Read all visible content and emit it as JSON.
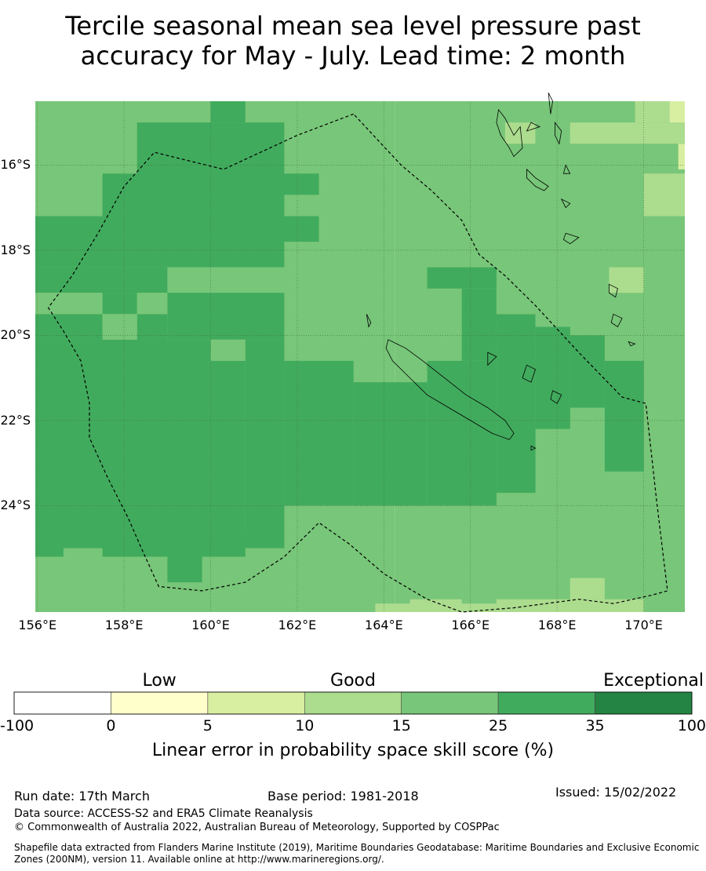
{
  "title": {
    "line1": "Tercile seasonal mean sea level pressure past",
    "line2": "accuracy for May - July. Lead time: 2 month"
  },
  "map": {
    "extent": {
      "lon": [
        155.95,
        170.95
      ],
      "lat": [
        -26.5,
        -14.5
      ]
    },
    "lat_ticks": [
      {
        "value": -16,
        "label": "16°S"
      },
      {
        "value": -18,
        "label": "18°S"
      },
      {
        "value": -20,
        "label": "20°S"
      },
      {
        "value": -22,
        "label": "22°S"
      },
      {
        "value": -24,
        "label": "24°S"
      }
    ],
    "lon_ticks": [
      {
        "value": 156,
        "label": "156°E"
      },
      {
        "value": 158,
        "label": "158°E"
      },
      {
        "value": 160,
        "label": "160°E"
      },
      {
        "value": 162,
        "label": "162°E"
      },
      {
        "value": 164,
        "label": "164°E"
      },
      {
        "value": 166,
        "label": "166°E"
      },
      {
        "value": 168,
        "label": "168°E"
      },
      {
        "value": 170,
        "label": "170°E"
      }
    ],
    "skill_colors": {
      "A": "#d8efa1",
      "B": "#acdc8e",
      "C": "#78c679",
      "D": "#41ab5d"
    },
    "skill_cells": [
      {
        "lon0": 164.25,
        "lon1": 170.95,
        "lat0": -26.5,
        "lat1": -14.5,
        "c": "C"
      },
      {
        "lon0": 155.95,
        "lon1": 164.25,
        "lat0": -26.5,
        "lat1": -14.5,
        "c": "C"
      },
      {
        "lon0": 160.0,
        "lon1": 160.8,
        "lat0": -15.0,
        "lat1": -14.5,
        "c": "D"
      },
      {
        "lon0": 158.3,
        "lon1": 161.7,
        "lat0": -17.0,
        "lat1": -15.0,
        "c": "D"
      },
      {
        "lon0": 161.7,
        "lon1": 162.5,
        "lat0": -16.7,
        "lat1": -16.2,
        "c": "D"
      },
      {
        "lon0": 157.5,
        "lon1": 161.7,
        "lat0": -17.8,
        "lat1": -16.2,
        "c": "D"
      },
      {
        "lon0": 155.95,
        "lon1": 161.7,
        "lat0": -18.4,
        "lat1": -17.2,
        "c": "D"
      },
      {
        "lon0": 161.7,
        "lon1": 162.5,
        "lat0": -17.8,
        "lat1": -17.2,
        "c": "D"
      },
      {
        "lon0": 155.95,
        "lon1": 159.0,
        "lat0": -19.0,
        "lat1": -18.4,
        "c": "D"
      },
      {
        "lon0": 157.5,
        "lon1": 158.3,
        "lat0": -19.5,
        "lat1": -19.0,
        "c": "D"
      },
      {
        "lon0": 159.0,
        "lon1": 161.7,
        "lat0": -20.1,
        "lat1": -19.0,
        "c": "D"
      },
      {
        "lon0": 158.3,
        "lon1": 159.0,
        "lat0": -20.1,
        "lat1": -19.5,
        "c": "D"
      },
      {
        "lon0": 155.95,
        "lon1": 157.5,
        "lat0": -20.1,
        "lat1": -19.5,
        "c": "D"
      },
      {
        "lon0": 155.95,
        "lon1": 160.0,
        "lat0": -25.0,
        "lat1": -20.1,
        "c": "D"
      },
      {
        "lon0": 160.0,
        "lon1": 160.8,
        "lat0": -25.0,
        "lat1": -20.6,
        "c": "D"
      },
      {
        "lon0": 160.8,
        "lon1": 161.7,
        "lat0": -25.0,
        "lat1": -20.1,
        "c": "D"
      },
      {
        "lon0": 161.7,
        "lon1": 163.3,
        "lat0": -24.0,
        "lat1": -20.6,
        "c": "D"
      },
      {
        "lon0": 163.3,
        "lon1": 165.0,
        "lat0": -24.0,
        "lat1": -21.1,
        "c": "D"
      },
      {
        "lon0": 165.0,
        "lon1": 166.6,
        "lat0": -24.0,
        "lat1": -20.6,
        "c": "D"
      },
      {
        "lon0": 165.8,
        "lon1": 166.6,
        "lat0": -20.6,
        "lat1": -18.9,
        "c": "D"
      },
      {
        "lon0": 165.0,
        "lon1": 166.6,
        "lat0": -18.9,
        "lat1": -18.4,
        "c": "D"
      },
      {
        "lon0": 166.6,
        "lon1": 167.5,
        "lat0": -23.7,
        "lat1": -19.5,
        "c": "D"
      },
      {
        "lon0": 167.5,
        "lon1": 168.3,
        "lat0": -22.2,
        "lat1": -19.8,
        "c": "D"
      },
      {
        "lon0": 168.3,
        "lon1": 169.1,
        "lat0": -21.7,
        "lat1": -20.0,
        "c": "D"
      },
      {
        "lon0": 169.1,
        "lon1": 170.0,
        "lat0": -23.2,
        "lat1": -20.6,
        "c": "D"
      },
      {
        "lon0": 155.95,
        "lon1": 156.6,
        "lat0": -25.2,
        "lat1": -24.7,
        "c": "D"
      },
      {
        "lon0": 157.5,
        "lon1": 160.8,
        "lat0": -25.2,
        "lat1": -24.7,
        "c": "D"
      },
      {
        "lon0": 159.0,
        "lon1": 159.8,
        "lat0": -25.8,
        "lat1": -25.2,
        "c": "D"
      },
      {
        "lon0": 160.0,
        "lon1": 160.8,
        "lat0": -20.6,
        "lat1": -20.1,
        "c": "C"
      },
      {
        "lon0": 157.5,
        "lon1": 158.3,
        "lat0": -20.1,
        "lat1": -19.5,
        "c": "C"
      },
      {
        "lon0": 155.95,
        "lon1": 157.5,
        "lat0": -19.5,
        "lat1": -19.0,
        "c": "C"
      },
      {
        "lon0": 158.3,
        "lon1": 159.0,
        "lat0": -19.5,
        "lat1": -19.0,
        "c": "C"
      },
      {
        "lon0": 166.6,
        "lon1": 167.5,
        "lat0": -19.5,
        "lat1": -18.9,
        "c": "C"
      },
      {
        "lon0": 167.5,
        "lon1": 168.3,
        "lat0": -19.8,
        "lat1": -19.5,
        "c": "C"
      },
      {
        "lon0": 169.8,
        "lon1": 170.95,
        "lat0": -15.0,
        "lat1": -14.5,
        "c": "B"
      },
      {
        "lon0": 168.3,
        "lon1": 170.95,
        "lat0": -15.5,
        "lat1": -15.0,
        "c": "B"
      },
      {
        "lon0": 170.0,
        "lon1": 170.95,
        "lat0": -17.2,
        "lat1": -16.2,
        "c": "B"
      },
      {
        "lon0": 166.8,
        "lon1": 167.5,
        "lat0": -15.5,
        "lat1": -15.0,
        "c": "B"
      },
      {
        "lon0": 169.2,
        "lon1": 170.0,
        "lat0": -19.0,
        "lat1": -18.4,
        "c": "B"
      },
      {
        "lon0": 168.3,
        "lon1": 169.1,
        "lat0": -26.2,
        "lat1": -25.7,
        "c": "B"
      },
      {
        "lon0": 166.6,
        "lon1": 170.0,
        "lat0": -26.5,
        "lat1": -26.2,
        "c": "B"
      },
      {
        "lon0": 164.6,
        "lon1": 165.8,
        "lat0": -26.5,
        "lat1": -26.2,
        "c": "B"
      },
      {
        "lon0": 163.8,
        "lon1": 166.6,
        "lat0": -26.5,
        "lat1": -26.3,
        "c": "B"
      },
      {
        "lon0": 170.6,
        "lon1": 170.95,
        "lat0": -15.0,
        "lat1": -14.5,
        "c": "A"
      },
      {
        "lon0": 170.8,
        "lon1": 170.95,
        "lat0": -16.1,
        "lat1": -15.5,
        "c": "A"
      }
    ],
    "eez_boundary": [
      [
        163.3,
        -14.8
      ],
      [
        162.0,
        -15.3
      ],
      [
        160.3,
        -16.1
      ],
      [
        158.7,
        -15.7
      ],
      [
        158.0,
        -16.5
      ],
      [
        157.4,
        -17.6
      ],
      [
        156.8,
        -18.6
      ],
      [
        156.25,
        -19.35
      ],
      [
        156.6,
        -19.9
      ],
      [
        157.0,
        -20.6
      ],
      [
        157.2,
        -21.6
      ],
      [
        157.2,
        -22.4
      ],
      [
        157.6,
        -23.3
      ],
      [
        158.1,
        -24.3
      ],
      [
        158.4,
        -25.0
      ],
      [
        158.8,
        -25.9
      ],
      [
        159.8,
        -26.0
      ],
      [
        160.8,
        -25.8
      ],
      [
        161.7,
        -25.2
      ],
      [
        162.5,
        -24.4
      ],
      [
        163.2,
        -24.9
      ],
      [
        164.0,
        -25.6
      ],
      [
        165.0,
        -26.2
      ],
      [
        165.8,
        -26.5
      ],
      [
        167.0,
        -26.4
      ],
      [
        168.5,
        -26.2
      ],
      [
        169.3,
        -26.3
      ],
      [
        170.2,
        -26.1
      ],
      [
        170.55,
        -26.0
      ],
      [
        170.3,
        -23.9
      ],
      [
        170.05,
        -21.6
      ],
      [
        169.5,
        -21.45
      ],
      [
        168.5,
        -20.4
      ],
      [
        167.5,
        -19.3
      ],
      [
        166.8,
        -18.6
      ],
      [
        166.2,
        -18.1
      ],
      [
        165.8,
        -17.3
      ],
      [
        165.1,
        -16.6
      ],
      [
        164.4,
        -16.0
      ],
      [
        163.3,
        -14.8
      ]
    ],
    "coastlines": [
      [
        [
          164.1,
          -20.1
        ],
        [
          164.5,
          -20.3
        ],
        [
          164.9,
          -20.6
        ],
        [
          165.4,
          -21.0
        ],
        [
          165.9,
          -21.4
        ],
        [
          166.4,
          -21.7
        ],
        [
          166.8,
          -22.0
        ],
        [
          167.0,
          -22.3
        ],
        [
          166.9,
          -22.45
        ],
        [
          166.5,
          -22.3
        ],
        [
          166.0,
          -22.0
        ],
        [
          165.5,
          -21.7
        ],
        [
          165.0,
          -21.4
        ],
        [
          164.6,
          -21.0
        ],
        [
          164.2,
          -20.6
        ],
        [
          164.05,
          -20.3
        ],
        [
          164.1,
          -20.1
        ]
      ],
      [
        [
          167.0,
          -15.3
        ],
        [
          167.15,
          -15.1
        ],
        [
          167.2,
          -15.6
        ],
        [
          167.0,
          -15.8
        ],
        [
          166.9,
          -15.6
        ],
        [
          166.7,
          -15.3
        ],
        [
          166.6,
          -15.0
        ],
        [
          166.65,
          -14.7
        ],
        [
          166.8,
          -14.9
        ],
        [
          167.0,
          -15.3
        ]
      ],
      [
        [
          167.3,
          -16.1
        ],
        [
          167.5,
          -16.3
        ],
        [
          167.8,
          -16.5
        ],
        [
          167.7,
          -16.6
        ],
        [
          167.5,
          -16.5
        ],
        [
          167.3,
          -16.3
        ],
        [
          167.3,
          -16.1
        ]
      ],
      [
        [
          168.1,
          -16.8
        ],
        [
          168.3,
          -16.9
        ],
        [
          168.2,
          -17.0
        ],
        [
          168.1,
          -16.8
        ]
      ],
      [
        [
          168.2,
          -17.6
        ],
        [
          168.5,
          -17.7
        ],
        [
          168.3,
          -17.85
        ],
        [
          168.15,
          -17.75
        ],
        [
          168.2,
          -17.6
        ]
      ],
      [
        [
          167.95,
          -15.0
        ],
        [
          168.1,
          -15.2
        ],
        [
          168.05,
          -15.5
        ],
        [
          167.95,
          -15.3
        ],
        [
          167.95,
          -15.0
        ]
      ],
      [
        [
          167.8,
          -14.3
        ],
        [
          167.9,
          -14.5
        ],
        [
          167.85,
          -14.8
        ],
        [
          167.8,
          -14.3
        ]
      ],
      [
        [
          167.4,
          -15.0
        ],
        [
          167.6,
          -15.1
        ],
        [
          167.3,
          -15.2
        ],
        [
          167.4,
          -15.0
        ]
      ],
      [
        [
          168.2,
          -16.0
        ],
        [
          168.3,
          -16.2
        ],
        [
          168.15,
          -16.2
        ],
        [
          168.2,
          -16.0
        ]
      ],
      [
        [
          169.2,
          -18.8
        ],
        [
          169.4,
          -18.9
        ],
        [
          169.35,
          -19.1
        ],
        [
          169.2,
          -19.0
        ],
        [
          169.2,
          -18.8
        ]
      ],
      [
        [
          169.3,
          -19.5
        ],
        [
          169.5,
          -19.6
        ],
        [
          169.4,
          -19.8
        ],
        [
          169.25,
          -19.7
        ],
        [
          169.3,
          -19.5
        ]
      ],
      [
        [
          167.3,
          -20.7
        ],
        [
          167.5,
          -20.8
        ],
        [
          167.4,
          -21.1
        ],
        [
          167.2,
          -21.0
        ],
        [
          167.3,
          -20.7
        ]
      ],
      [
        [
          167.9,
          -21.3
        ],
        [
          168.1,
          -21.4
        ],
        [
          168.0,
          -21.6
        ],
        [
          167.85,
          -21.5
        ],
        [
          167.9,
          -21.3
        ]
      ],
      [
        [
          166.4,
          -20.4
        ],
        [
          166.6,
          -20.5
        ],
        [
          166.4,
          -20.7
        ],
        [
          166.4,
          -20.4
        ]
      ],
      [
        [
          167.4,
          -22.6
        ],
        [
          167.5,
          -22.65
        ],
        [
          167.4,
          -22.7
        ],
        [
          167.4,
          -22.6
        ]
      ],
      [
        [
          169.65,
          -20.15
        ],
        [
          169.8,
          -20.2
        ],
        [
          169.7,
          -20.25
        ],
        [
          169.65,
          -20.15
        ]
      ],
      [
        [
          163.6,
          -19.5
        ],
        [
          163.7,
          -19.7
        ],
        [
          163.65,
          -19.8
        ],
        [
          163.6,
          -19.5
        ]
      ]
    ]
  },
  "legend": {
    "colors": [
      "#ffffff",
      "#ffffcc",
      "#d8efa1",
      "#acdc8e",
      "#78c679",
      "#41ab5d",
      "#238443"
    ],
    "categories": [
      {
        "label": "Low",
        "pos": 1.5
      },
      {
        "label": "Good",
        "pos": 3.5
      },
      {
        "label": "Exceptional",
        "pos": 6.5
      }
    ],
    "ticks": [
      "-100",
      "0",
      "5",
      "10",
      "15",
      "25",
      "35",
      "100"
    ],
    "title": "Linear error in probability space skill score (%)"
  },
  "footer": {
    "run_date": "Run date: 17th March",
    "base_period": "Base period: 1981-2018",
    "issued": "Issued: 15/02/2022",
    "data_source": "Data source: ACCESS-S2 and ERA5 Climate Reanalysis",
    "copyright": "© Commonwealth of Australia 2022, Australian Bureau of Meteorology, Supported by COSPPac",
    "shapefile": "Shapefile data extracted from Flanders Marine Institute (2019), Maritime Boundaries Geodatabase: Maritime Boundaries and Exclusive Economic Zones (200NM), version 11. Available online at http://www.marineregions.org/."
  }
}
